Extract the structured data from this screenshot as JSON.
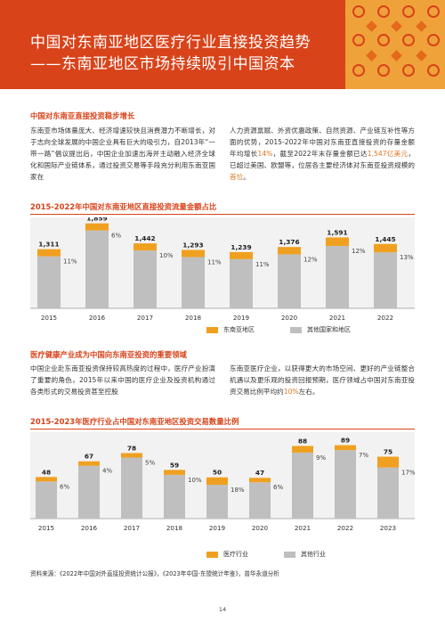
{
  "banner": {
    "title_line1": "中国对东南亚地区医疗行业直接投资趋势",
    "title_line2": "——东南亚地区市场持续吸引中国资本"
  },
  "section1": {
    "heading": "中国对东南亚直接投资稳步增长",
    "left_text": "东南亚市场体量庞大、经济增速较快且消费潜力不断增长，对于志向全球发展的中国企业具有巨大的吸引力，自2013年“一带一路”倡议提出后，中国企业加速出海并主动融入经济全球化和国际产业链体系，通过投资交易等手段充分利用东南亚国家在",
    "right_text_a": "人力资源禀赋、外资优惠政策、自然资源、产业链互补性等方面的优势，2015-2022年中国对东南亚直接投资的存量金额年均增长",
    "right_hl1": "14%",
    "right_text_b": "，截至2022年末存量金额已达",
    "right_hl2": "1,547亿美元",
    "right_text_c": "，已超过美国、欧盟等，位居各主要经济体对东南亚投资规模的",
    "right_hl3": "首位",
    "right_text_d": "。"
  },
  "section2": {
    "heading": "医疗健康产业成为中国向东南亚投资的重要领域",
    "left_text": "中国企业赴东南亚投资保持较高热度的过程中，医疗产业扮演了重要的角色，2015年以来中国的医疗企业及投资机构通过各类形式的交易投资甚至控股",
    "right_text_a": "东南亚医疗企业，以获得更大的市场空间、更好的产业链整合机遇以及更乐观的投资回报预期，医疗领域占中国对东南亚投资交易比例平均约",
    "right_hl": "10%",
    "right_text_b": "左右。"
  },
  "colors": {
    "orange": "#f0a020",
    "gray": "#bfbfbf",
    "accent": "#d8431a"
  },
  "chart_data": [
    {
      "type": "bar",
      "title": "2015-2022年中国对东南亚地区直接投资流量金额占比",
      "categories": [
        "2015",
        "2016",
        "2017",
        "2018",
        "2019",
        "2020",
        "2021",
        "2022"
      ],
      "totals": [
        1311,
        1859,
        1442,
        1293,
        1239,
        1376,
        1591,
        1445
      ],
      "total_labels": [
        "1,311",
        "1,859",
        "1,442",
        "1,293",
        "1,239",
        "1,376",
        "1,591",
        "1,445"
      ],
      "share_labels": [
        "11%",
        "6%",
        "10%",
        "11%",
        "11%",
        "12%",
        "12%",
        "13%"
      ],
      "series": [
        {
          "name": "东南亚地区",
          "values": [
            144,
            112,
            144,
            142,
            136,
            165,
            191,
            188
          ]
        },
        {
          "name": "其他国家和地区",
          "values": [
            1167,
            1747,
            1298,
            1151,
            1103,
            1211,
            1400,
            1257
          ]
        }
      ],
      "legend": [
        "东南亚地区",
        "其他国家和地区"
      ],
      "ylim": [
        0,
        2000
      ]
    },
    {
      "type": "bar",
      "title": "2015-2023年医疗行业占中国对东南亚地区投资交易数量比例",
      "categories": [
        "2015",
        "2016",
        "2017",
        "2018",
        "2019",
        "2020",
        "2021",
        "2022",
        "2023"
      ],
      "totals": [
        48,
        67,
        78,
        59,
        50,
        47,
        88,
        89,
        75
      ],
      "total_labels": [
        "48",
        "67",
        "78",
        "59",
        "50",
        "47",
        "88",
        "89",
        "75"
      ],
      "share_labels": [
        "6%",
        "4%",
        "5%",
        "10%",
        "18%",
        "6%",
        "9%",
        "7%",
        "17%"
      ],
      "series": [
        {
          "name": "医疗行业",
          "values": [
            3,
            3,
            4,
            6,
            9,
            3,
            8,
            6,
            13
          ]
        },
        {
          "name": "其他行业",
          "values": [
            45,
            64,
            74,
            53,
            41,
            44,
            80,
            83,
            62
          ]
        }
      ],
      "legend": [
        "医疗行业",
        "其他行业"
      ],
      "ylim": [
        0,
        95
      ]
    }
  ],
  "source": "资料来源：《2022年中国对外直接投资统计公报》，《2023年中国-东盟统计年鉴》，普华永道分析",
  "page_number": "14"
}
